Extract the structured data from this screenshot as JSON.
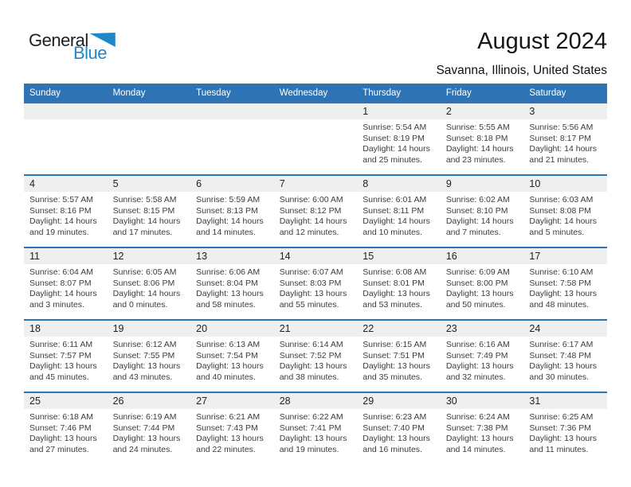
{
  "logo": {
    "part1": "General",
    "part2": "Blue"
  },
  "title": "August 2024",
  "subtitle": "Savanna, Illinois, United States",
  "weekdays": [
    "Sunday",
    "Monday",
    "Tuesday",
    "Wednesday",
    "Thursday",
    "Friday",
    "Saturday"
  ],
  "colors": {
    "header_bg": "#2E74B5",
    "accent_line": "#2E74B5",
    "logo_blue": "#1E88C7",
    "daynum_bg": "#EFEFEF"
  },
  "weeks": [
    [
      null,
      null,
      null,
      null,
      {
        "num": "1",
        "sunrise": "Sunrise: 5:54 AM",
        "sunset": "Sunset: 8:19 PM",
        "daylight_a": "Daylight: 14 hours",
        "daylight_b": "and 25 minutes."
      },
      {
        "num": "2",
        "sunrise": "Sunrise: 5:55 AM",
        "sunset": "Sunset: 8:18 PM",
        "daylight_a": "Daylight: 14 hours",
        "daylight_b": "and 23 minutes."
      },
      {
        "num": "3",
        "sunrise": "Sunrise: 5:56 AM",
        "sunset": "Sunset: 8:17 PM",
        "daylight_a": "Daylight: 14 hours",
        "daylight_b": "and 21 minutes."
      }
    ],
    [
      {
        "num": "4",
        "sunrise": "Sunrise: 5:57 AM",
        "sunset": "Sunset: 8:16 PM",
        "daylight_a": "Daylight: 14 hours",
        "daylight_b": "and 19 minutes."
      },
      {
        "num": "5",
        "sunrise": "Sunrise: 5:58 AM",
        "sunset": "Sunset: 8:15 PM",
        "daylight_a": "Daylight: 14 hours",
        "daylight_b": "and 17 minutes."
      },
      {
        "num": "6",
        "sunrise": "Sunrise: 5:59 AM",
        "sunset": "Sunset: 8:13 PM",
        "daylight_a": "Daylight: 14 hours",
        "daylight_b": "and 14 minutes."
      },
      {
        "num": "7",
        "sunrise": "Sunrise: 6:00 AM",
        "sunset": "Sunset: 8:12 PM",
        "daylight_a": "Daylight: 14 hours",
        "daylight_b": "and 12 minutes."
      },
      {
        "num": "8",
        "sunrise": "Sunrise: 6:01 AM",
        "sunset": "Sunset: 8:11 PM",
        "daylight_a": "Daylight: 14 hours",
        "daylight_b": "and 10 minutes."
      },
      {
        "num": "9",
        "sunrise": "Sunrise: 6:02 AM",
        "sunset": "Sunset: 8:10 PM",
        "daylight_a": "Daylight: 14 hours",
        "daylight_b": "and 7 minutes."
      },
      {
        "num": "10",
        "sunrise": "Sunrise: 6:03 AM",
        "sunset": "Sunset: 8:08 PM",
        "daylight_a": "Daylight: 14 hours",
        "daylight_b": "and 5 minutes."
      }
    ],
    [
      {
        "num": "11",
        "sunrise": "Sunrise: 6:04 AM",
        "sunset": "Sunset: 8:07 PM",
        "daylight_a": "Daylight: 14 hours",
        "daylight_b": "and 3 minutes."
      },
      {
        "num": "12",
        "sunrise": "Sunrise: 6:05 AM",
        "sunset": "Sunset: 8:06 PM",
        "daylight_a": "Daylight: 14 hours",
        "daylight_b": "and 0 minutes."
      },
      {
        "num": "13",
        "sunrise": "Sunrise: 6:06 AM",
        "sunset": "Sunset: 8:04 PM",
        "daylight_a": "Daylight: 13 hours",
        "daylight_b": "and 58 minutes."
      },
      {
        "num": "14",
        "sunrise": "Sunrise: 6:07 AM",
        "sunset": "Sunset: 8:03 PM",
        "daylight_a": "Daylight: 13 hours",
        "daylight_b": "and 55 minutes."
      },
      {
        "num": "15",
        "sunrise": "Sunrise: 6:08 AM",
        "sunset": "Sunset: 8:01 PM",
        "daylight_a": "Daylight: 13 hours",
        "daylight_b": "and 53 minutes."
      },
      {
        "num": "16",
        "sunrise": "Sunrise: 6:09 AM",
        "sunset": "Sunset: 8:00 PM",
        "daylight_a": "Daylight: 13 hours",
        "daylight_b": "and 50 minutes."
      },
      {
        "num": "17",
        "sunrise": "Sunrise: 6:10 AM",
        "sunset": "Sunset: 7:58 PM",
        "daylight_a": "Daylight: 13 hours",
        "daylight_b": "and 48 minutes."
      }
    ],
    [
      {
        "num": "18",
        "sunrise": "Sunrise: 6:11 AM",
        "sunset": "Sunset: 7:57 PM",
        "daylight_a": "Daylight: 13 hours",
        "daylight_b": "and 45 minutes."
      },
      {
        "num": "19",
        "sunrise": "Sunrise: 6:12 AM",
        "sunset": "Sunset: 7:55 PM",
        "daylight_a": "Daylight: 13 hours",
        "daylight_b": "and 43 minutes."
      },
      {
        "num": "20",
        "sunrise": "Sunrise: 6:13 AM",
        "sunset": "Sunset: 7:54 PM",
        "daylight_a": "Daylight: 13 hours",
        "daylight_b": "and 40 minutes."
      },
      {
        "num": "21",
        "sunrise": "Sunrise: 6:14 AM",
        "sunset": "Sunset: 7:52 PM",
        "daylight_a": "Daylight: 13 hours",
        "daylight_b": "and 38 minutes."
      },
      {
        "num": "22",
        "sunrise": "Sunrise: 6:15 AM",
        "sunset": "Sunset: 7:51 PM",
        "daylight_a": "Daylight: 13 hours",
        "daylight_b": "and 35 minutes."
      },
      {
        "num": "23",
        "sunrise": "Sunrise: 6:16 AM",
        "sunset": "Sunset: 7:49 PM",
        "daylight_a": "Daylight: 13 hours",
        "daylight_b": "and 32 minutes."
      },
      {
        "num": "24",
        "sunrise": "Sunrise: 6:17 AM",
        "sunset": "Sunset: 7:48 PM",
        "daylight_a": "Daylight: 13 hours",
        "daylight_b": "and 30 minutes."
      }
    ],
    [
      {
        "num": "25",
        "sunrise": "Sunrise: 6:18 AM",
        "sunset": "Sunset: 7:46 PM",
        "daylight_a": "Daylight: 13 hours",
        "daylight_b": "and 27 minutes."
      },
      {
        "num": "26",
        "sunrise": "Sunrise: 6:19 AM",
        "sunset": "Sunset: 7:44 PM",
        "daylight_a": "Daylight: 13 hours",
        "daylight_b": "and 24 minutes."
      },
      {
        "num": "27",
        "sunrise": "Sunrise: 6:21 AM",
        "sunset": "Sunset: 7:43 PM",
        "daylight_a": "Daylight: 13 hours",
        "daylight_b": "and 22 minutes."
      },
      {
        "num": "28",
        "sunrise": "Sunrise: 6:22 AM",
        "sunset": "Sunset: 7:41 PM",
        "daylight_a": "Daylight: 13 hours",
        "daylight_b": "and 19 minutes."
      },
      {
        "num": "29",
        "sunrise": "Sunrise: 6:23 AM",
        "sunset": "Sunset: 7:40 PM",
        "daylight_a": "Daylight: 13 hours",
        "daylight_b": "and 16 minutes."
      },
      {
        "num": "30",
        "sunrise": "Sunrise: 6:24 AM",
        "sunset": "Sunset: 7:38 PM",
        "daylight_a": "Daylight: 13 hours",
        "daylight_b": "and 14 minutes."
      },
      {
        "num": "31",
        "sunrise": "Sunrise: 6:25 AM",
        "sunset": "Sunset: 7:36 PM",
        "daylight_a": "Daylight: 13 hours",
        "daylight_b": "and 11 minutes."
      }
    ]
  ]
}
